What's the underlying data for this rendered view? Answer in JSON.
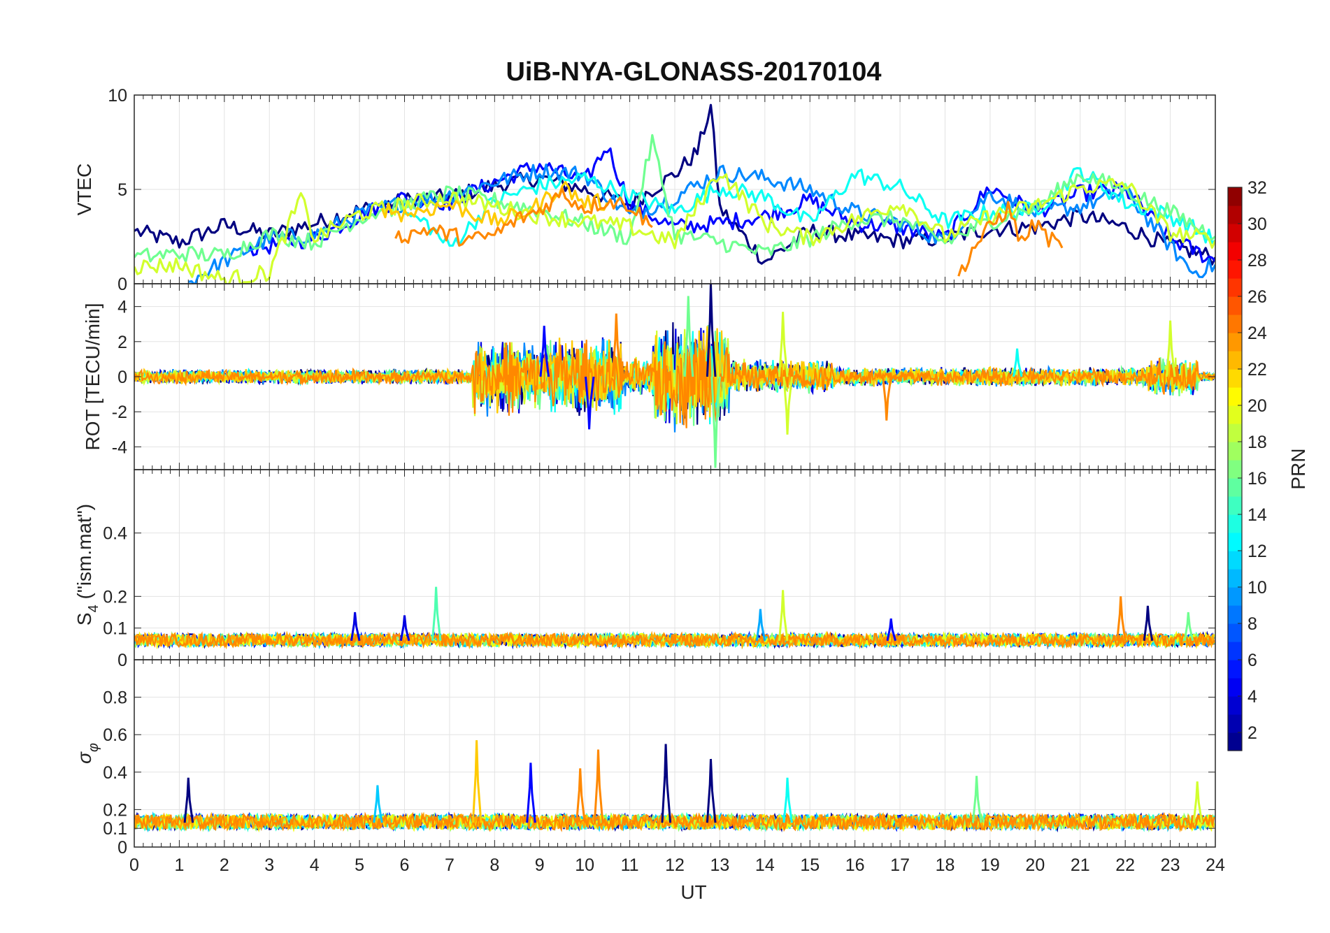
{
  "chart_data": {
    "type": "line",
    "title": "UiB-NYA-GLONASS-20170104",
    "xlabel": "UT",
    "xlim": [
      0,
      24
    ],
    "xticks": [
      "0",
      "1",
      "2",
      "3",
      "4",
      "5",
      "6",
      "7",
      "8",
      "9",
      "10",
      "11",
      "12",
      "13",
      "14",
      "15",
      "16",
      "17",
      "18",
      "19",
      "20",
      "21",
      "22",
      "23",
      "24"
    ],
    "grid": true,
    "panels": [
      {
        "id": "vtec",
        "ylabel": "VTEC",
        "ylim": [
          0,
          10
        ],
        "yticks": [
          {
            "value": 0,
            "label": "0"
          },
          {
            "value": 5,
            "label": "5"
          },
          {
            "value": 10,
            "label": "10"
          }
        ],
        "series": [
          {
            "prn": 1,
            "x": [
              0,
              1,
              2,
              3,
              4,
              5,
              6,
              7,
              8,
              9,
              10,
              11,
              12,
              12.5,
              12.8,
              13,
              14,
              15,
              16,
              17,
              18,
              19,
              20,
              21,
              22,
              23,
              24
            ],
            "y": [
              2.8,
              2.2,
              3.1,
              2.6,
              3.2,
              3.9,
              4.4,
              4.6,
              5.2,
              5.6,
              5.0,
              4.2,
              5.8,
              7.0,
              9.4,
              4.0,
              1.2,
              2.8,
              2.5,
              2.3,
              2.4,
              2.9,
              3.0,
              3.6,
              3.0,
              2.0,
              1.4
            ]
          },
          {
            "prn": 5,
            "x": [
              2.5,
              3,
              4,
              5,
              6,
              7,
              8,
              9,
              10,
              10.5,
              11,
              12,
              13,
              14,
              15,
              16,
              17,
              18,
              19,
              20,
              21,
              22,
              23,
              24
            ],
            "y": [
              1.8,
              2.0,
              2.4,
              3.6,
              4.6,
              4.3,
              5.4,
              6.3,
              5.4,
              7.3,
              4.2,
              3.0,
              3.2,
              3.6,
              4.4,
              3.2,
              3.0,
              2.4,
              5.1,
              3.8,
              4.8,
              5.0,
              2.4,
              1.2
            ]
          },
          {
            "prn": 9,
            "x": [
              1.2,
              2,
              3,
              4,
              5,
              6,
              7,
              8,
              9,
              10,
              11,
              12,
              13,
              14,
              15,
              16,
              17,
              18,
              19,
              20,
              21,
              22,
              23,
              23.5,
              24
            ],
            "y": [
              0.1,
              1.2,
              2.4,
              2.6,
              3.7,
              4.3,
              4.7,
              5.4,
              6.0,
              5.8,
              3.6,
              4.6,
              5.9,
              5.6,
              5.0,
              3.8,
              3.2,
              2.3,
              4.8,
              3.8,
              4.1,
              4.9,
              2.0,
              0.6,
              1.0
            ]
          },
          {
            "prn": 13,
            "x": [
              6,
              6.5,
              7,
              8,
              9,
              10,
              11,
              12,
              13,
              14,
              15,
              16,
              17,
              18,
              19,
              20,
              21,
              22,
              23,
              24
            ],
            "y": [
              3.7,
              3.2,
              1.9,
              4.4,
              5.2,
              5.6,
              4.7,
              3.8,
              5.1,
              4.6,
              3.2,
              5.8,
              5.1,
              3.3,
              3.8,
              3.9,
              6.0,
              4.3,
              3.6,
              2.3
            ]
          },
          {
            "prn": 16,
            "x": [
              0,
              1,
              2,
              3,
              4,
              5,
              6,
              7,
              8,
              9,
              10,
              11,
              11.5,
              12,
              13,
              14,
              15,
              16,
              17,
              18,
              19,
              20,
              21,
              22,
              23,
              24
            ],
            "y": [
              1.4,
              1.6,
              1.5,
              2.6,
              2.2,
              3.5,
              4.2,
              4.8,
              4.4,
              3.9,
              3.2,
              2.4,
              7.6,
              2.6,
              2.2,
              1.6,
              2.4,
              3.4,
              3.4,
              2.2,
              3.3,
              4.0,
              5.8,
              5.0,
              3.8,
              2.5
            ]
          },
          {
            "prn": 19,
            "x": [
              0,
              1,
              2,
              3,
              3.7,
              4,
              5,
              6,
              7,
              8,
              9,
              10,
              11,
              12,
              13,
              14,
              15,
              16,
              17,
              18,
              19,
              20,
              21,
              22,
              23,
              24
            ],
            "y": [
              0.9,
              1.0,
              0.2,
              0.6,
              4.6,
              2.4,
              3.7,
              4.2,
              4.6,
              4.1,
              3.6,
              3.3,
              3.0,
              2.2,
              6.0,
              3.2,
              2.4,
              3.4,
              4.3,
              2.5,
              3.6,
              4.1,
              5.1,
              5.3,
              2.7,
              2.3
            ]
          },
          {
            "prn": 22,
            "x": [
              5.5,
              6,
              7,
              8,
              8.5,
              9,
              9.5,
              10,
              10.5
            ],
            "y": [
              4.0,
              3.7,
              4.2,
              3.3,
              3.6,
              4.2,
              5.2,
              4.3,
              4.3
            ]
          },
          {
            "prn": 24,
            "x": [
              5.8,
              6.5,
              7.5,
              8,
              8.5,
              9,
              9.5,
              10,
              10.5,
              11,
              11.5
            ],
            "y": [
              2.4,
              2.9,
              2.3,
              2.6,
              3.4,
              3.9,
              4.8,
              4.0,
              4.4,
              4.2,
              3.0
            ]
          },
          {
            "prn": 24,
            "x": [
              18.3,
              18.6,
              19,
              19.4,
              19.7,
              20,
              20.3,
              20.6
            ],
            "y": [
              0.4,
              1.8,
              3.0,
              4.0,
              2.2,
              3.2,
              2.4,
              1.9
            ]
          }
        ]
      },
      {
        "id": "rot",
        "ylabel": "ROT [TECU/min]",
        "ylim": [
          -5.3,
          5.3
        ],
        "yticks": [
          {
            "value": -4,
            "label": "-4"
          },
          {
            "value": -2,
            "label": "-2"
          },
          {
            "value": 0,
            "label": "0"
          },
          {
            "value": 2,
            "label": "2"
          },
          {
            "value": 4,
            "label": "4"
          }
        ],
        "noise_bands": [
          {
            "x0": 0,
            "x1": 7.5,
            "amp": 0.35
          },
          {
            "x0": 7.5,
            "x1": 10.8,
            "amp": 1.8
          },
          {
            "x0": 10.8,
            "x1": 11.5,
            "amp": 0.9
          },
          {
            "x0": 11.5,
            "x1": 13.2,
            "amp": 2.6
          },
          {
            "x0": 13.2,
            "x1": 15.5,
            "amp": 0.8
          },
          {
            "x0": 15.5,
            "x1": 22.5,
            "amp": 0.45
          },
          {
            "x0": 22.5,
            "x1": 23.6,
            "amp": 0.9
          },
          {
            "x0": 23.6,
            "x1": 24,
            "amp": 0.2
          }
        ],
        "spikes": [
          {
            "x": 9.1,
            "y": 2.9,
            "prn": 5
          },
          {
            "x": 10.1,
            "y": -3.0,
            "prn": 5
          },
          {
            "x": 10.7,
            "y": 3.6,
            "prn": 24
          },
          {
            "x": 12.8,
            "y": 5.3,
            "prn": 1
          },
          {
            "x": 12.9,
            "y": -5.2,
            "prn": 16
          },
          {
            "x": 12.3,
            "y": 4.6,
            "prn": 16
          },
          {
            "x": 14.4,
            "y": 3.7,
            "prn": 19
          },
          {
            "x": 14.5,
            "y": -3.3,
            "prn": 19
          },
          {
            "x": 16.7,
            "y": -2.5,
            "prn": 24
          },
          {
            "x": 23.0,
            "y": 3.2,
            "prn": 19
          },
          {
            "x": 19.6,
            "y": 1.6,
            "prn": 13
          }
        ]
      },
      {
        "id": "s4",
        "ylabel": "S4 (\"ism.mat\")",
        "ylim": [
          0,
          0.6
        ],
        "yticks": [
          {
            "value": 0,
            "label": "0"
          },
          {
            "value": 0.1,
            "label": "0.1"
          },
          {
            "value": 0.2,
            "label": "0.2"
          },
          {
            "value": 0.4,
            "label": "0.4"
          }
        ],
        "baseline": 0.06,
        "noise_amp": 0.02,
        "spikes": [
          {
            "x": 6.7,
            "y": 0.23,
            "prn": 15
          },
          {
            "x": 14.4,
            "y": 0.22,
            "prn": 19
          },
          {
            "x": 13.9,
            "y": 0.16,
            "prn": 10
          },
          {
            "x": 21.9,
            "y": 0.2,
            "prn": 24
          },
          {
            "x": 22.5,
            "y": 0.17,
            "prn": 1
          },
          {
            "x": 4.9,
            "y": 0.15,
            "prn": 4
          },
          {
            "x": 6.0,
            "y": 0.14,
            "prn": 4
          },
          {
            "x": 23.4,
            "y": 0.15,
            "prn": 16
          },
          {
            "x": 16.8,
            "y": 0.13,
            "prn": 5
          }
        ]
      },
      {
        "id": "sigphi",
        "ylabel": "σφ",
        "ylim": [
          0,
          1
        ],
        "yticks": [
          {
            "value": 0,
            "label": "0"
          },
          {
            "value": 0.1,
            "label": "0.1"
          },
          {
            "value": 0.2,
            "label": "0.2"
          },
          {
            "value": 0.4,
            "label": "0.4"
          },
          {
            "value": 0.6,
            "label": "0.6"
          },
          {
            "value": 0.8,
            "label": "0.8"
          }
        ],
        "baseline": 0.13,
        "noise_amp": 0.04,
        "spikes": [
          {
            "x": 7.6,
            "y": 0.57,
            "prn": 22
          },
          {
            "x": 10.3,
            "y": 0.52,
            "prn": 24
          },
          {
            "x": 11.8,
            "y": 0.55,
            "prn": 1
          },
          {
            "x": 12.8,
            "y": 0.47,
            "prn": 1
          },
          {
            "x": 1.2,
            "y": 0.37,
            "prn": 1
          },
          {
            "x": 8.8,
            "y": 0.45,
            "prn": 5
          },
          {
            "x": 9.9,
            "y": 0.42,
            "prn": 24
          },
          {
            "x": 18.7,
            "y": 0.38,
            "prn": 16
          },
          {
            "x": 23.6,
            "y": 0.35,
            "prn": 19
          },
          {
            "x": 14.5,
            "y": 0.37,
            "prn": 13
          },
          {
            "x": 5.4,
            "y": 0.33,
            "prn": 11
          }
        ]
      }
    ],
    "colorbar": {
      "label": "PRN",
      "colormap": "jet",
      "range": [
        1,
        32
      ],
      "levels": 31,
      "ticks": [
        2,
        4,
        6,
        8,
        10,
        12,
        14,
        16,
        18,
        20,
        22,
        24,
        26,
        28,
        30,
        32
      ]
    }
  }
}
